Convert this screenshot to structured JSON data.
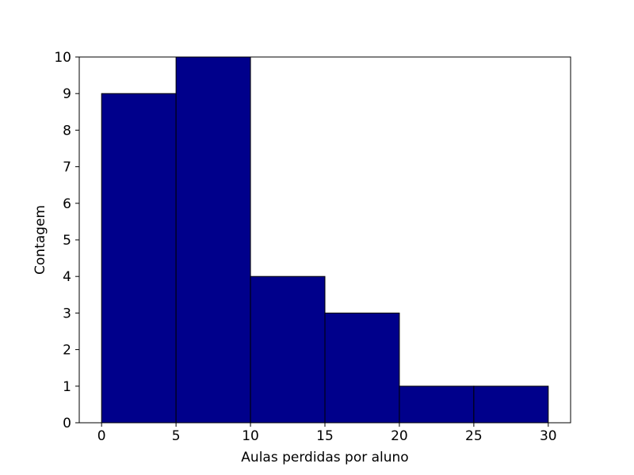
{
  "chart_data": {
    "type": "bar",
    "subtype": "histogram",
    "bins": [
      {
        "x0": 0,
        "x1": 5,
        "count": 9
      },
      {
        "x0": 5,
        "x1": 10,
        "count": 10
      },
      {
        "x0": 10,
        "x1": 15,
        "count": 4
      },
      {
        "x0": 15,
        "x1": 20,
        "count": 3
      },
      {
        "x0": 20,
        "x1": 25,
        "count": 1
      },
      {
        "x0": 25,
        "x1": 30,
        "count": 1
      }
    ],
    "xlabel": "Aulas perdidas por aluno",
    "ylabel": "Contagem",
    "xlim": [
      -1.5,
      31.5
    ],
    "ylim": [
      0,
      10
    ],
    "xticks": [
      0,
      5,
      10,
      15,
      20,
      25,
      30
    ],
    "yticks": [
      0,
      1,
      2,
      3,
      4,
      5,
      6,
      7,
      8,
      9,
      10
    ],
    "bar_color": "#00008b",
    "edge_color": "#000000",
    "grid": false
  }
}
